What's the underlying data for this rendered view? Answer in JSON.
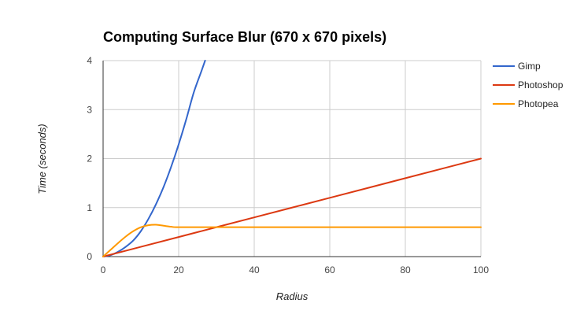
{
  "chart_data": {
    "type": "line",
    "title": "Computing Surface Blur (670 x 670 pixels)",
    "xlabel": "Radius",
    "ylabel": "Time (seconds)",
    "xlim": [
      0,
      100
    ],
    "ylim": [
      0,
      4
    ],
    "xticks": [
      "0",
      "20",
      "40",
      "60",
      "80",
      "100"
    ],
    "yticks": [
      "0",
      "1",
      "2",
      "3",
      "4"
    ],
    "grid": true,
    "legend_position": "right",
    "series": [
      {
        "name": "Gimp",
        "color": "#3366cc",
        "points": [
          [
            0,
            0
          ],
          [
            2,
            0.03
          ],
          [
            4,
            0.1
          ],
          [
            6,
            0.2
          ],
          [
            8,
            0.33
          ],
          [
            10,
            0.52
          ],
          [
            12,
            0.77
          ],
          [
            14,
            1.07
          ],
          [
            16,
            1.42
          ],
          [
            18,
            1.83
          ],
          [
            20,
            2.29
          ],
          [
            22,
            2.8
          ],
          [
            24,
            3.35
          ],
          [
            26,
            3.78
          ],
          [
            27,
            4.0
          ]
        ]
      },
      {
        "name": "Photoshop",
        "color": "#dc3912",
        "points": [
          [
            0,
            0
          ],
          [
            10,
            0.2
          ],
          [
            20,
            0.4
          ],
          [
            30,
            0.6
          ],
          [
            40,
            0.8
          ],
          [
            50,
            1.0
          ],
          [
            60,
            1.2
          ],
          [
            70,
            1.4
          ],
          [
            80,
            1.6
          ],
          [
            90,
            1.8
          ],
          [
            100,
            2.0
          ]
        ]
      },
      {
        "name": "Photopea",
        "color": "#ff9900",
        "points": [
          [
            0,
            0
          ],
          [
            2,
            0.14
          ],
          [
            4,
            0.28
          ],
          [
            6,
            0.41
          ],
          [
            8,
            0.52
          ],
          [
            10,
            0.6
          ],
          [
            12,
            0.64
          ],
          [
            14,
            0.65
          ],
          [
            16,
            0.63
          ],
          [
            18,
            0.61
          ],
          [
            20,
            0.6
          ],
          [
            30,
            0.6
          ],
          [
            50,
            0.6
          ],
          [
            70,
            0.6
          ],
          [
            100,
            0.6
          ]
        ]
      }
    ]
  }
}
